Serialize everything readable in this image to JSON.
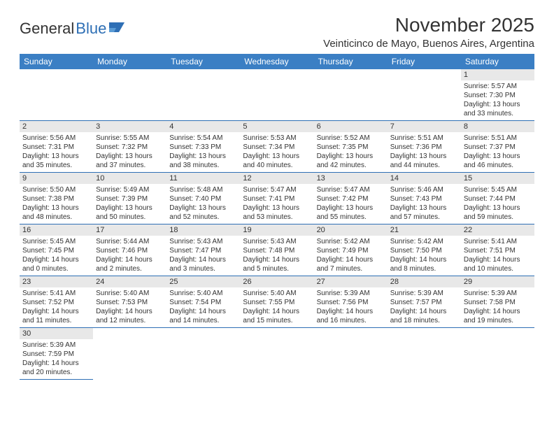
{
  "brand": {
    "part1": "General",
    "part2": "Blue"
  },
  "title": "November 2025",
  "location": "Veinticinco de Mayo, Buenos Aires, Argentina",
  "colors": {
    "header_bg": "#3b7fc4",
    "header_text": "#ffffff",
    "daynum_bg": "#e8e8e8",
    "border": "#2e6fb5",
    "text": "#333333",
    "brand_blue": "#2e6fb5"
  },
  "weekdays": [
    "Sunday",
    "Monday",
    "Tuesday",
    "Wednesday",
    "Thursday",
    "Friday",
    "Saturday"
  ],
  "grid": {
    "leading_blanks": 6,
    "days": [
      {
        "n": "1",
        "sunrise": "Sunrise: 5:57 AM",
        "sunset": "Sunset: 7:30 PM",
        "day1": "Daylight: 13 hours",
        "day2": "and 33 minutes."
      },
      {
        "n": "2",
        "sunrise": "Sunrise: 5:56 AM",
        "sunset": "Sunset: 7:31 PM",
        "day1": "Daylight: 13 hours",
        "day2": "and 35 minutes."
      },
      {
        "n": "3",
        "sunrise": "Sunrise: 5:55 AM",
        "sunset": "Sunset: 7:32 PM",
        "day1": "Daylight: 13 hours",
        "day2": "and 37 minutes."
      },
      {
        "n": "4",
        "sunrise": "Sunrise: 5:54 AM",
        "sunset": "Sunset: 7:33 PM",
        "day1": "Daylight: 13 hours",
        "day2": "and 38 minutes."
      },
      {
        "n": "5",
        "sunrise": "Sunrise: 5:53 AM",
        "sunset": "Sunset: 7:34 PM",
        "day1": "Daylight: 13 hours",
        "day2": "and 40 minutes."
      },
      {
        "n": "6",
        "sunrise": "Sunrise: 5:52 AM",
        "sunset": "Sunset: 7:35 PM",
        "day1": "Daylight: 13 hours",
        "day2": "and 42 minutes."
      },
      {
        "n": "7",
        "sunrise": "Sunrise: 5:51 AM",
        "sunset": "Sunset: 7:36 PM",
        "day1": "Daylight: 13 hours",
        "day2": "and 44 minutes."
      },
      {
        "n": "8",
        "sunrise": "Sunrise: 5:51 AM",
        "sunset": "Sunset: 7:37 PM",
        "day1": "Daylight: 13 hours",
        "day2": "and 46 minutes."
      },
      {
        "n": "9",
        "sunrise": "Sunrise: 5:50 AM",
        "sunset": "Sunset: 7:38 PM",
        "day1": "Daylight: 13 hours",
        "day2": "and 48 minutes."
      },
      {
        "n": "10",
        "sunrise": "Sunrise: 5:49 AM",
        "sunset": "Sunset: 7:39 PM",
        "day1": "Daylight: 13 hours",
        "day2": "and 50 minutes."
      },
      {
        "n": "11",
        "sunrise": "Sunrise: 5:48 AM",
        "sunset": "Sunset: 7:40 PM",
        "day1": "Daylight: 13 hours",
        "day2": "and 52 minutes."
      },
      {
        "n": "12",
        "sunrise": "Sunrise: 5:47 AM",
        "sunset": "Sunset: 7:41 PM",
        "day1": "Daylight: 13 hours",
        "day2": "and 53 minutes."
      },
      {
        "n": "13",
        "sunrise": "Sunrise: 5:47 AM",
        "sunset": "Sunset: 7:42 PM",
        "day1": "Daylight: 13 hours",
        "day2": "and 55 minutes."
      },
      {
        "n": "14",
        "sunrise": "Sunrise: 5:46 AM",
        "sunset": "Sunset: 7:43 PM",
        "day1": "Daylight: 13 hours",
        "day2": "and 57 minutes."
      },
      {
        "n": "15",
        "sunrise": "Sunrise: 5:45 AM",
        "sunset": "Sunset: 7:44 PM",
        "day1": "Daylight: 13 hours",
        "day2": "and 59 minutes."
      },
      {
        "n": "16",
        "sunrise": "Sunrise: 5:45 AM",
        "sunset": "Sunset: 7:45 PM",
        "day1": "Daylight: 14 hours",
        "day2": "and 0 minutes."
      },
      {
        "n": "17",
        "sunrise": "Sunrise: 5:44 AM",
        "sunset": "Sunset: 7:46 PM",
        "day1": "Daylight: 14 hours",
        "day2": "and 2 minutes."
      },
      {
        "n": "18",
        "sunrise": "Sunrise: 5:43 AM",
        "sunset": "Sunset: 7:47 PM",
        "day1": "Daylight: 14 hours",
        "day2": "and 3 minutes."
      },
      {
        "n": "19",
        "sunrise": "Sunrise: 5:43 AM",
        "sunset": "Sunset: 7:48 PM",
        "day1": "Daylight: 14 hours",
        "day2": "and 5 minutes."
      },
      {
        "n": "20",
        "sunrise": "Sunrise: 5:42 AM",
        "sunset": "Sunset: 7:49 PM",
        "day1": "Daylight: 14 hours",
        "day2": "and 7 minutes."
      },
      {
        "n": "21",
        "sunrise": "Sunrise: 5:42 AM",
        "sunset": "Sunset: 7:50 PM",
        "day1": "Daylight: 14 hours",
        "day2": "and 8 minutes."
      },
      {
        "n": "22",
        "sunrise": "Sunrise: 5:41 AM",
        "sunset": "Sunset: 7:51 PM",
        "day1": "Daylight: 14 hours",
        "day2": "and 10 minutes."
      },
      {
        "n": "23",
        "sunrise": "Sunrise: 5:41 AM",
        "sunset": "Sunset: 7:52 PM",
        "day1": "Daylight: 14 hours",
        "day2": "and 11 minutes."
      },
      {
        "n": "24",
        "sunrise": "Sunrise: 5:40 AM",
        "sunset": "Sunset: 7:53 PM",
        "day1": "Daylight: 14 hours",
        "day2": "and 12 minutes."
      },
      {
        "n": "25",
        "sunrise": "Sunrise: 5:40 AM",
        "sunset": "Sunset: 7:54 PM",
        "day1": "Daylight: 14 hours",
        "day2": "and 14 minutes."
      },
      {
        "n": "26",
        "sunrise": "Sunrise: 5:40 AM",
        "sunset": "Sunset: 7:55 PM",
        "day1": "Daylight: 14 hours",
        "day2": "and 15 minutes."
      },
      {
        "n": "27",
        "sunrise": "Sunrise: 5:39 AM",
        "sunset": "Sunset: 7:56 PM",
        "day1": "Daylight: 14 hours",
        "day2": "and 16 minutes."
      },
      {
        "n": "28",
        "sunrise": "Sunrise: 5:39 AM",
        "sunset": "Sunset: 7:57 PM",
        "day1": "Daylight: 14 hours",
        "day2": "and 18 minutes."
      },
      {
        "n": "29",
        "sunrise": "Sunrise: 5:39 AM",
        "sunset": "Sunset: 7:58 PM",
        "day1": "Daylight: 14 hours",
        "day2": "and 19 minutes."
      },
      {
        "n": "30",
        "sunrise": "Sunrise: 5:39 AM",
        "sunset": "Sunset: 7:59 PM",
        "day1": "Daylight: 14 hours",
        "day2": "and 20 minutes."
      }
    ]
  }
}
